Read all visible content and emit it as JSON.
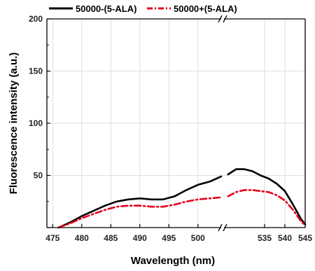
{
  "chart_data": {
    "type": "line",
    "xlabel": "Wavelength (nm)",
    "ylabel": "Fluorescence intensity  (a.u.)",
    "ylim": [
      0,
      200
    ],
    "y_ticks": [
      50,
      100,
      150,
      200
    ],
    "x_axis_break": true,
    "x_segments": [
      {
        "range": [
          474,
          504
        ],
        "ticks": [
          475,
          480,
          485,
          490,
          495,
          500
        ]
      },
      {
        "range": [
          525,
          545
        ],
        "ticks": [
          535,
          540,
          545
        ]
      }
    ],
    "grid": true,
    "legend_position": "top",
    "series": [
      {
        "name": "50000-(5-ALA)",
        "color": "#000000",
        "style": "solid",
        "x": [
          476,
          478,
          480,
          482,
          484,
          486,
          488,
          490,
          492,
          494,
          496,
          498,
          500,
          502,
          504,
          526,
          528,
          530,
          532,
          534,
          536,
          538,
          540,
          542,
          544,
          545
        ],
        "y": [
          0,
          5,
          11,
          16,
          21,
          25,
          27,
          28,
          27,
          27,
          30,
          36,
          41,
          44,
          49,
          51,
          56,
          56,
          54,
          50,
          47,
          42,
          35,
          22,
          8,
          3
        ]
      },
      {
        "name": "50000+(5-ALA)",
        "color": "#e3001b",
        "style": "dashdot",
        "x": [
          476,
          478,
          480,
          482,
          484,
          486,
          488,
          490,
          492,
          494,
          496,
          498,
          500,
          502,
          504,
          526,
          528,
          530,
          532,
          534,
          536,
          538,
          540,
          542,
          544,
          545
        ],
        "y": [
          0,
          4,
          9,
          13,
          17,
          20,
          21,
          21,
          20,
          20,
          22,
          25,
          27,
          28,
          29,
          30,
          34,
          36,
          36,
          35,
          34,
          31,
          26,
          17,
          6,
          2
        ]
      }
    ]
  }
}
